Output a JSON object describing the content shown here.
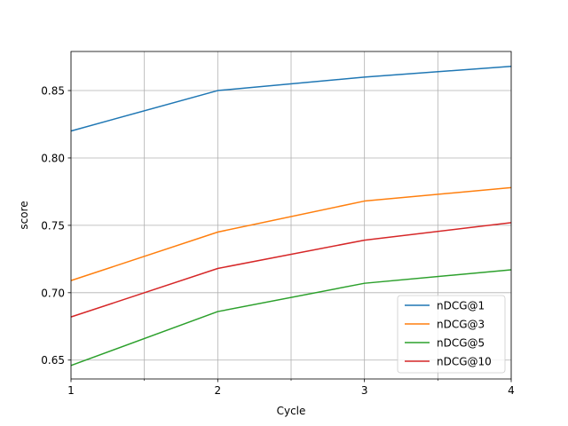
{
  "chart_data": {
    "type": "line",
    "title": "",
    "xlabel": "Cycle",
    "ylabel": "score",
    "x": [
      1,
      2,
      3,
      4
    ],
    "xlim": [
      1,
      4
    ],
    "ylim": [
      0.636,
      0.879
    ],
    "x_ticks": [
      1,
      2,
      3,
      4
    ],
    "x_ticks_labeled": [
      "1",
      "2",
      "3",
      "4"
    ],
    "x_minor_gridlines": [
      1.5,
      2.5,
      3.5
    ],
    "y_ticks": [
      0.65,
      0.7,
      0.75,
      0.8,
      0.85
    ],
    "y_tick_labels": [
      "0.65",
      "0.70",
      "0.75",
      "0.80",
      "0.85"
    ],
    "grid": true,
    "legend_position": "lower right",
    "series": [
      {
        "name": "nDCG@1",
        "color": "#1f77b4",
        "values": [
          0.82,
          0.85,
          0.86,
          0.868
        ]
      },
      {
        "name": "nDCG@3",
        "color": "#ff7f0e",
        "values": [
          0.709,
          0.745,
          0.768,
          0.778
        ]
      },
      {
        "name": "nDCG@5",
        "color": "#2ca02c",
        "values": [
          0.646,
          0.686,
          0.707,
          0.717
        ]
      },
      {
        "name": "nDCG@10",
        "color": "#d62728",
        "values": [
          0.682,
          0.718,
          0.739,
          0.752
        ]
      }
    ]
  }
}
